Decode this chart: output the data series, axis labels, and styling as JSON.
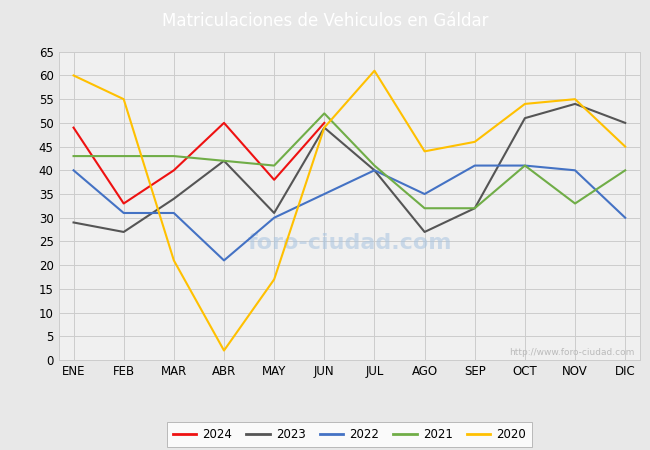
{
  "title": "Matriculaciones de Vehiculos en Gáldar",
  "title_bg_color": "#4472C4",
  "title_text_color": "#FFFFFF",
  "ylim": [
    0,
    65
  ],
  "yticks": [
    0,
    5,
    10,
    15,
    20,
    25,
    30,
    35,
    40,
    45,
    50,
    55,
    60,
    65
  ],
  "months": [
    "ENE",
    "FEB",
    "MAR",
    "ABR",
    "MAY",
    "JUN",
    "JUL",
    "AGO",
    "SEP",
    "OCT",
    "NOV",
    "DIC"
  ],
  "series": {
    "2024": {
      "data": [
        49,
        33,
        40,
        50,
        38,
        50,
        null,
        null,
        null,
        null,
        null,
        null
      ],
      "color": "#EE1111",
      "linewidth": 1.5
    },
    "2023": {
      "data": [
        29,
        27,
        34,
        42,
        31,
        49,
        40,
        27,
        32,
        51,
        54,
        50
      ],
      "color": "#555555",
      "linewidth": 1.5
    },
    "2022": {
      "data": [
        40,
        31,
        31,
        21,
        30,
        35,
        40,
        35,
        41,
        41,
        40,
        30
      ],
      "color": "#4472C4",
      "linewidth": 1.5
    },
    "2021": {
      "data": [
        43,
        43,
        43,
        42,
        41,
        52,
        41,
        32,
        32,
        41,
        33,
        40
      ],
      "color": "#70AD47",
      "linewidth": 1.5
    },
    "2020": {
      "data": [
        60,
        55,
        21,
        2,
        17,
        49,
        61,
        44,
        46,
        54,
        55,
        45
      ],
      "color": "#FFC000",
      "linewidth": 1.5
    }
  },
  "legend_order": [
    "2024",
    "2023",
    "2022",
    "2021",
    "2020"
  ],
  "watermark": "http://www.foro-ciudad.com",
  "watermark_center": "foro-ciudad.com",
  "outer_bg_color": "#E8E8E8",
  "plot_bg_color": "#F0F0F0"
}
